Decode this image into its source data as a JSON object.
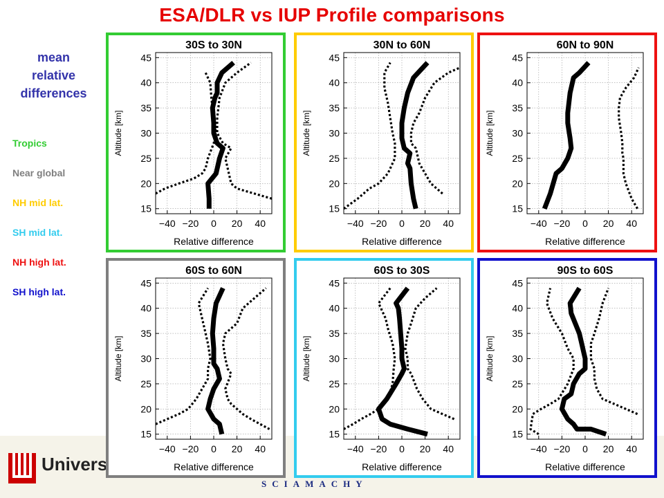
{
  "title": "ESA/DLR vs IUP Profile comparisons",
  "sidebar": {
    "heading_line1": "mean",
    "heading_line2": "relative",
    "heading_line3": "differences",
    "legend": [
      {
        "label": "Tropics",
        "color": "#33cc33"
      },
      {
        "label": "Near global",
        "color": "#7f7f7f"
      },
      {
        "label": "NH mid lat.",
        "color": "#ffcc00"
      },
      {
        "label": "SH mid lat.",
        "color": "#33ccee"
      },
      {
        "label": "NH high lat.",
        "color": "#ee1111"
      },
      {
        "label": "SH high lat.",
        "color": "#1111cc"
      }
    ]
  },
  "footer": {
    "university_text": "Universit",
    "sciamachy_text": "SCIAMACHY"
  },
  "chart_data": [
    {
      "type": "line",
      "title": "30S to 30N",
      "xlabel": "Relative difference",
      "ylabel": "Altitude [km]",
      "xlim": [
        -50,
        50
      ],
      "ylim": [
        14,
        46
      ],
      "xticks": [
        -40,
        -20,
        0,
        20,
        40
      ],
      "yticks": [
        15,
        20,
        25,
        30,
        35,
        40,
        45
      ],
      "grid": true,
      "frame_color": "#33cc33",
      "series": [
        {
          "style": "solid",
          "x": [
            -4,
            -4,
            -5,
            2,
            5,
            8,
            3,
            0,
            0,
            -1,
            1,
            3,
            3,
            7,
            17
          ],
          "y": [
            15,
            17,
            20,
            22,
            25,
            27,
            28,
            30,
            32,
            35,
            37,
            38,
            40,
            42,
            44
          ]
        },
        {
          "style": "dotted",
          "x": [
            -50,
            -42,
            -30,
            -17,
            -10,
            -7,
            -5,
            0,
            2,
            0,
            -2,
            -3,
            -7
          ],
          "y": [
            18,
            19,
            20,
            21,
            22,
            23,
            25,
            28,
            30,
            33,
            37,
            40,
            42
          ]
        },
        {
          "style": "dotted",
          "x": [
            50,
            35,
            20,
            15,
            12,
            10,
            15,
            8,
            3,
            3,
            5,
            10,
            20,
            32
          ],
          "y": [
            17,
            18,
            19,
            20,
            23,
            25,
            27,
            28,
            30,
            33,
            37,
            40,
            42,
            44
          ]
        }
      ]
    },
    {
      "type": "line",
      "title": "30N to 60N",
      "xlabel": "Relative difference",
      "ylabel": "Altitude [km]",
      "xlim": [
        -50,
        50
      ],
      "ylim": [
        14,
        46
      ],
      "xticks": [
        -40,
        -20,
        0,
        20,
        40
      ],
      "yticks": [
        15,
        20,
        25,
        30,
        35,
        40,
        45
      ],
      "grid": true,
      "frame_color": "#ffcc00",
      "series": [
        {
          "style": "solid",
          "x": [
            12,
            10,
            8,
            7,
            5,
            7,
            2,
            0,
            0,
            2,
            5,
            10,
            22
          ],
          "y": [
            15,
            17,
            20,
            23,
            24,
            26,
            27,
            29,
            32,
            35,
            38,
            41,
            44
          ]
        },
        {
          "style": "dotted",
          "x": [
            -50,
            -38,
            -28,
            -20,
            -12,
            -6,
            -6,
            -8,
            -10,
            -12,
            -15,
            -15,
            -10
          ],
          "y": [
            15,
            17,
            19,
            20,
            22,
            25,
            28,
            30,
            33,
            36,
            39,
            42,
            44
          ]
        },
        {
          "style": "dotted",
          "x": [
            35,
            30,
            25,
            20,
            15,
            12,
            8,
            8,
            10,
            15,
            20,
            28,
            40,
            50
          ],
          "y": [
            18,
            19,
            20,
            22,
            24,
            27,
            28,
            30,
            32,
            34,
            37,
            40,
            42,
            43
          ]
        }
      ]
    },
    {
      "type": "line",
      "title": "60N to 90N",
      "xlabel": "Relative difference",
      "ylabel": "Altitude [km]",
      "xlim": [
        -50,
        50
      ],
      "ylim": [
        14,
        46
      ],
      "xticks": [
        -40,
        -20,
        0,
        20,
        40
      ],
      "yticks": [
        15,
        20,
        25,
        30,
        35,
        40,
        45
      ],
      "grid": true,
      "frame_color": "#ee1111",
      "series": [
        {
          "style": "solid",
          "x": [
            -35,
            -30,
            -25,
            -20,
            -15,
            -12,
            -13,
            -15,
            -15,
            -13,
            -10,
            -5,
            3
          ],
          "y": [
            15,
            18,
            22,
            23,
            25,
            27,
            29,
            32,
            34,
            38,
            41,
            42,
            44
          ]
        },
        {
          "style": "dotted",
          "x": [
            45,
            40,
            35,
            33,
            33,
            32,
            32,
            31,
            29,
            29,
            30,
            35,
            42,
            46
          ],
          "y": [
            15,
            17,
            20,
            22,
            25,
            26,
            28,
            30,
            33,
            35,
            37,
            39,
            41,
            43
          ]
        }
      ]
    },
    {
      "type": "line",
      "title": "60S to 60N",
      "xlabel": "Relative difference",
      "ylabel": "Altitude [km]",
      "xlim": [
        -50,
        50
      ],
      "ylim": [
        14,
        46
      ],
      "xticks": [
        -40,
        -20,
        0,
        20,
        40
      ],
      "yticks": [
        15,
        20,
        25,
        30,
        35,
        40,
        45
      ],
      "grid": true,
      "frame_color": "#7f7f7f",
      "series": [
        {
          "style": "solid",
          "x": [
            7,
            5,
            0,
            -5,
            -3,
            0,
            5,
            3,
            0,
            0,
            -1,
            0,
            2,
            8
          ],
          "y": [
            15,
            17,
            18,
            20,
            22,
            24,
            26,
            28,
            29,
            32,
            35,
            38,
            41,
            44
          ]
        },
        {
          "style": "dotted",
          "x": [
            -50,
            -40,
            -30,
            -22,
            -15,
            -10,
            -5,
            -5,
            -3,
            -5,
            -8,
            -10,
            -13,
            -5
          ],
          "y": [
            17,
            18,
            19,
            20,
            22,
            24,
            26,
            28,
            30,
            33,
            36,
            38,
            41,
            44
          ]
        },
        {
          "style": "dotted",
          "x": [
            48,
            40,
            32,
            25,
            20,
            15,
            12,
            10,
            15,
            12,
            10,
            8,
            10,
            20,
            25,
            35,
            45
          ],
          "y": [
            16,
            17,
            18,
            19,
            20,
            21,
            22,
            24,
            27,
            28,
            30,
            33,
            35,
            37,
            40,
            42,
            44
          ]
        }
      ]
    },
    {
      "type": "line",
      "title": "60S to 30S",
      "xlabel": "Relative difference",
      "ylabel": "Altitude [km]",
      "xlim": [
        -50,
        50
      ],
      "ylim": [
        14,
        46
      ],
      "xticks": [
        -40,
        -20,
        0,
        20,
        40
      ],
      "yticks": [
        15,
        20,
        25,
        30,
        35,
        40,
        45
      ],
      "grid": true,
      "frame_color": "#33ccee",
      "series": [
        {
          "style": "solid",
          "x": [
            22,
            5,
            -10,
            -17,
            -20,
            -13,
            -5,
            0,
            2,
            0,
            0,
            -1,
            -2,
            -3,
            -5,
            5
          ],
          "y": [
            15,
            16,
            17,
            18,
            20,
            22,
            25,
            27,
            28,
            30,
            32,
            35,
            38,
            40,
            41,
            44
          ]
        },
        {
          "style": "dotted",
          "x": [
            -50,
            -42,
            -35,
            -27,
            -20,
            -12,
            -8,
            -7,
            -6,
            -8,
            -12,
            -14,
            -20,
            -10
          ],
          "y": [
            16,
            17,
            18,
            19,
            20,
            22,
            25,
            28,
            30,
            33,
            36,
            38,
            41,
            44
          ]
        },
        {
          "style": "dotted",
          "x": [
            45,
            35,
            25,
            18,
            13,
            8,
            5,
            5,
            3,
            5,
            8,
            12,
            20,
            30
          ],
          "y": [
            18,
            19,
            20,
            22,
            24,
            27,
            28,
            30,
            32,
            35,
            37,
            40,
            42,
            44
          ]
        }
      ]
    },
    {
      "type": "line",
      "title": "90S to 60S",
      "xlabel": "Relative difference",
      "ylabel": "Altitude [km]",
      "xlim": [
        -50,
        50
      ],
      "ylim": [
        14,
        46
      ],
      "xticks": [
        -40,
        -20,
        0,
        20,
        40
      ],
      "yticks": [
        15,
        20,
        25,
        30,
        35,
        40,
        45
      ],
      "grid": true,
      "frame_color": "#1111cc",
      "series": [
        {
          "style": "solid",
          "x": [
            18,
            5,
            -7,
            -10,
            -15,
            -20,
            -18,
            -12,
            -10,
            -5,
            0,
            0,
            -3,
            -5,
            -12,
            -13,
            -5
          ],
          "y": [
            15,
            16,
            16,
            17,
            18,
            20,
            22,
            23,
            25,
            27,
            28,
            30,
            33,
            35,
            39,
            41,
            44
          ]
        },
        {
          "style": "dotted",
          "x": [
            -40,
            -47,
            -45,
            -38,
            -30,
            -23,
            -15,
            -10,
            -10,
            -15,
            -20,
            -28,
            -33,
            -30
          ],
          "y": [
            15,
            16,
            19,
            20,
            21,
            22,
            25,
            28,
            30,
            32,
            35,
            38,
            41,
            44
          ]
        },
        {
          "style": "dotted",
          "x": [
            45,
            35,
            25,
            15,
            10,
            8,
            8,
            5,
            5,
            8,
            12,
            15,
            20
          ],
          "y": [
            19,
            20,
            21,
            22,
            24,
            26,
            28,
            30,
            33,
            35,
            38,
            41,
            44
          ]
        }
      ]
    }
  ]
}
